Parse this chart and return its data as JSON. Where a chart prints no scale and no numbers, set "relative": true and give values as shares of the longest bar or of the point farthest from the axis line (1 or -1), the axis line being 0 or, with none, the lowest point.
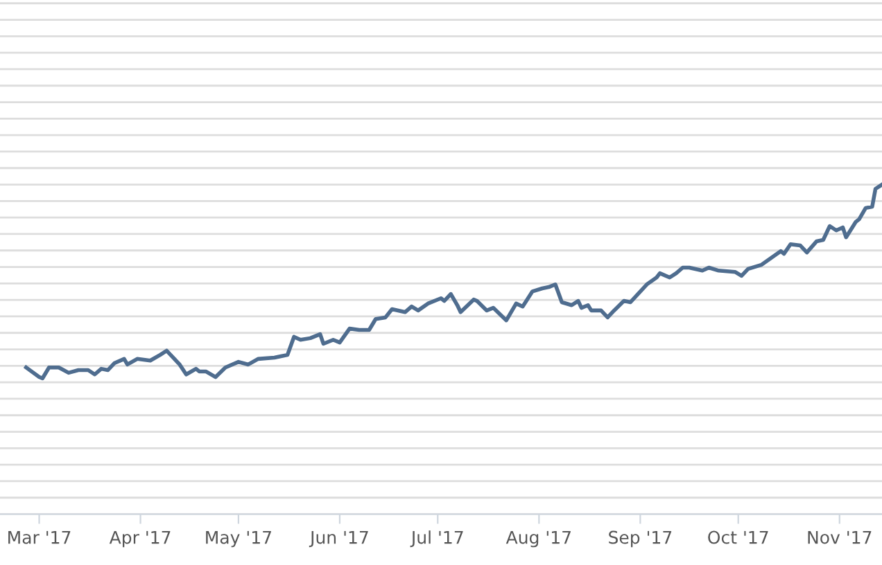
{
  "chart_data": {
    "type": "line",
    "relative": true,
    "grid": "y",
    "marker": "none",
    "line_style": "solid",
    "xlim": [
      "2017-02-17",
      "2017-11-14"
    ],
    "xticks": [
      {
        "value": "2017-03-01",
        "label": "Mar '17"
      },
      {
        "value": "2017-04-01",
        "label": "Apr '17"
      },
      {
        "value": "2017-05-01",
        "label": "May '17"
      },
      {
        "value": "2017-06-01",
        "label": "Jun '17"
      },
      {
        "value": "2017-07-01",
        "label": "Jul '17"
      },
      {
        "value": "2017-08-01",
        "label": "Aug '17"
      },
      {
        "value": "2017-09-01",
        "label": "Sep '17"
      },
      {
        "value": "2017-10-01",
        "label": "Oct '17"
      },
      {
        "value": "2017-11-01",
        "label": "Nov '17"
      }
    ],
    "series": [
      {
        "color": "#4f6d8f",
        "x": [
          "2017-02-25",
          "2017-03-01",
          "2017-03-02",
          "2017-03-04",
          "2017-03-07",
          "2017-03-10",
          "2017-03-13",
          "2017-03-16",
          "2017-03-18",
          "2017-03-20",
          "2017-03-22",
          "2017-03-24",
          "2017-03-27",
          "2017-03-28",
          "2017-03-31",
          "2017-04-04",
          "2017-04-07",
          "2017-04-09",
          "2017-04-11",
          "2017-04-13",
          "2017-04-15",
          "2017-04-18",
          "2017-04-19",
          "2017-04-21",
          "2017-04-24",
          "2017-04-27",
          "2017-05-01",
          "2017-05-04",
          "2017-05-07",
          "2017-05-12",
          "2017-05-14",
          "2017-05-16",
          "2017-05-18",
          "2017-05-20",
          "2017-05-23",
          "2017-05-26",
          "2017-05-27",
          "2017-05-30",
          "2017-06-01",
          "2017-06-04",
          "2017-06-07",
          "2017-06-10",
          "2017-06-12",
          "2017-06-15",
          "2017-06-17",
          "2017-06-21",
          "2017-06-23",
          "2017-06-25",
          "2017-06-28",
          "2017-07-02",
          "2017-07-03",
          "2017-07-05",
          "2017-07-07",
          "2017-07-08",
          "2017-07-12",
          "2017-07-13",
          "2017-07-16",
          "2017-07-18",
          "2017-07-22",
          "2017-07-25",
          "2017-07-27",
          "2017-07-30",
          "2017-08-02",
          "2017-08-04",
          "2017-08-06",
          "2017-08-08",
          "2017-08-11",
          "2017-08-13",
          "2017-08-14",
          "2017-08-16",
          "2017-08-17",
          "2017-08-20",
          "2017-08-22",
          "2017-08-24",
          "2017-08-27",
          "2017-08-29",
          "2017-09-03",
          "2017-09-06",
          "2017-09-07",
          "2017-09-10",
          "2017-09-12",
          "2017-09-14",
          "2017-09-16",
          "2017-09-20",
          "2017-09-22",
          "2017-09-25",
          "2017-09-30",
          "2017-10-02",
          "2017-10-04",
          "2017-10-08",
          "2017-10-11",
          "2017-10-14",
          "2017-10-15",
          "2017-10-17",
          "2017-10-20",
          "2017-10-22",
          "2017-10-25",
          "2017-10-27",
          "2017-10-29",
          "2017-10-31",
          "2017-11-02",
          "2017-11-03",
          "2017-11-06",
          "2017-11-07",
          "2017-11-09",
          "2017-11-11",
          "2017-11-12",
          "2017-11-14"
        ],
        "values": [
          0.445,
          0.416,
          0.412,
          0.445,
          0.445,
          0.429,
          0.437,
          0.437,
          0.424,
          0.441,
          0.437,
          0.458,
          0.471,
          0.454,
          0.471,
          0.466,
          0.483,
          0.496,
          0.475,
          0.454,
          0.424,
          0.441,
          0.433,
          0.433,
          0.416,
          0.445,
          0.462,
          0.454,
          0.471,
          0.475,
          0.479,
          0.483,
          0.538,
          0.529,
          0.534,
          0.546,
          0.517,
          0.529,
          0.521,
          0.563,
          0.559,
          0.559,
          0.592,
          0.597,
          0.622,
          0.613,
          0.63,
          0.618,
          0.639,
          0.655,
          0.647,
          0.668,
          0.634,
          0.613,
          0.651,
          0.647,
          0.618,
          0.626,
          0.588,
          0.639,
          0.63,
          0.676,
          0.685,
          0.689,
          0.697,
          0.643,
          0.634,
          0.647,
          0.626,
          0.634,
          0.618,
          0.618,
          0.597,
          0.618,
          0.647,
          0.643,
          0.697,
          0.718,
          0.731,
          0.718,
          0.731,
          0.748,
          0.748,
          0.739,
          0.748,
          0.739,
          0.735,
          0.723,
          0.744,
          0.756,
          0.777,
          0.798,
          0.79,
          0.819,
          0.815,
          0.794,
          0.828,
          0.832,
          0.874,
          0.861,
          0.87,
          0.84,
          0.887,
          0.895,
          0.929,
          0.933,
          0.987,
          1
        ]
      }
    ]
  }
}
